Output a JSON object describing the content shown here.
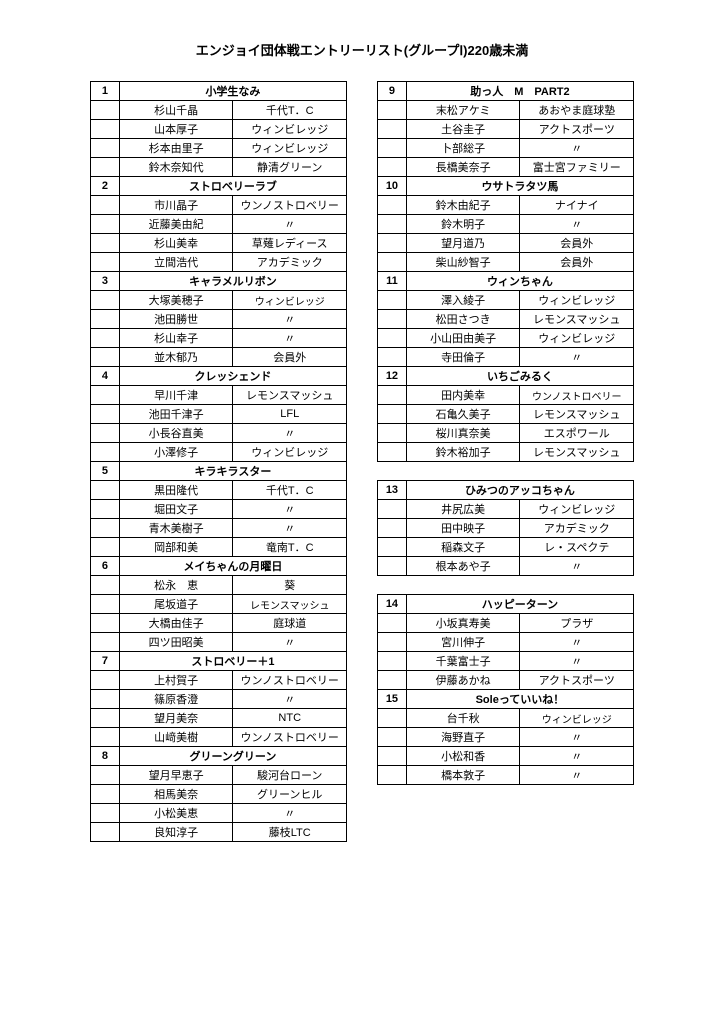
{
  "title": "エンジョイ団体戦エントリーリスト(グループⅠ)220歳未満",
  "left": [
    {
      "num": "1",
      "name": "小学生なみ",
      "members": [
        [
          "杉山千晶",
          "千代T．C"
        ],
        [
          "山本厚子",
          "ウィンビレッジ"
        ],
        [
          "杉本由里子",
          "ウィンビレッジ"
        ],
        [
          "鈴木奈知代",
          "静清グリーン"
        ]
      ]
    },
    {
      "num": "2",
      "name": "ストロベリーラブ",
      "members": [
        [
          "市川晶子",
          "ウンノストロベリー"
        ],
        [
          "近藤美由紀",
          "〃"
        ],
        [
          "杉山美幸",
          "草薙レディース"
        ],
        [
          "立間浩代",
          "アカデミック"
        ]
      ]
    },
    {
      "num": "3",
      "name": "キャラメルリボン",
      "members": [
        [
          "大塚美穂子",
          "ウィンビレッジ",
          true
        ],
        [
          "池田勝世",
          "〃"
        ],
        [
          "杉山幸子",
          "〃"
        ],
        [
          "並木郁乃",
          "会員外"
        ]
      ]
    },
    {
      "num": "4",
      "name": "クレッシェンド",
      "members": [
        [
          "早川千津",
          "レモンスマッシュ"
        ],
        [
          "池田千津子",
          "LFL"
        ],
        [
          "小長谷直美",
          "〃"
        ],
        [
          "小澤修子",
          "ウィンビレッジ"
        ]
      ]
    },
    {
      "num": "5",
      "name": "キラキラスター",
      "members": [
        [
          "黒田隆代",
          "千代T．C"
        ],
        [
          "堀田文子",
          "〃"
        ],
        [
          "青木美樹子",
          "〃"
        ],
        [
          "岡部和美",
          "竜南T．C"
        ]
      ]
    },
    {
      "num": "6",
      "name": "メイちゃんの月曜日",
      "members": [
        [
          "松永　恵",
          "葵"
        ],
        [
          "尾坂道子",
          "レモンスマッシュ",
          true
        ],
        [
          "大橋由佳子",
          "庭球道"
        ],
        [
          "四ツ田昭美",
          "〃"
        ]
      ]
    },
    {
      "num": "7",
      "name": "ストロベリー＋1",
      "members": [
        [
          "上村賀子",
          "ウンノストロベリー"
        ],
        [
          "篠原香澄",
          "〃"
        ],
        [
          "望月美奈",
          "NTC"
        ],
        [
          "山﨑美樹",
          "ウンノストロベリー"
        ]
      ]
    },
    {
      "num": "8",
      "name": "グリーングリーン",
      "members": [
        [
          "望月早恵子",
          "駿河台ローン"
        ],
        [
          "相馬美奈",
          "グリーンヒル"
        ],
        [
          "小松美恵",
          "〃"
        ],
        [
          "良知淳子",
          "藤枝LTC"
        ]
      ]
    }
  ],
  "right": [
    {
      "num": "9",
      "name": "助っ人　M　PART2",
      "members": [
        [
          "末松アケミ",
          "あおやま庭球塾"
        ],
        [
          "土谷圭子",
          "アクトスポーツ"
        ],
        [
          "卜部総子",
          "〃"
        ],
        [
          "長橋美奈子",
          "富士宮ファミリー"
        ]
      ]
    },
    {
      "num": "10",
      "name": "ウサトラタツ馬",
      "members": [
        [
          "鈴木由紀子",
          "ナイナイ"
        ],
        [
          "鈴木明子",
          "〃"
        ],
        [
          "望月道乃",
          "会員外"
        ],
        [
          "柴山紗智子",
          "会員外"
        ]
      ]
    },
    {
      "num": "11",
      "name": "ウィンちゃん",
      "members": [
        [
          "澤入綾子",
          "ウィンビレッジ"
        ],
        [
          "松田さつき",
          "レモンスマッシュ"
        ],
        [
          "小山田由美子",
          "ウィンビレッジ"
        ],
        [
          "寺田倫子",
          "〃"
        ]
      ]
    },
    {
      "num": "12",
      "name": "いちごみるく",
      "members": [
        [
          "田内美幸",
          "ウンノストロベリー",
          true
        ],
        [
          "石亀久美子",
          "レモンスマッシュ"
        ],
        [
          "桜川真奈美",
          "エスポワール"
        ],
        [
          "鈴木裕加子",
          "レモンスマッシュ"
        ]
      ]
    },
    {
      "num": "13",
      "name": "ひみつのアッコちゃん",
      "members": [
        [
          "井尻広美",
          "ウィンビレッジ"
        ],
        [
          "田中映子",
          "アカデミック"
        ],
        [
          "稲森文子",
          "レ・スペクテ"
        ],
        [
          "根本あや子",
          "〃"
        ]
      ],
      "gap_before": true
    },
    {
      "num": "14",
      "name": "ハッピーターン",
      "members": [
        [
          "小坂真寿美",
          "プラザ"
        ],
        [
          "宮川伸子",
          "〃"
        ],
        [
          "千葉富士子",
          "〃"
        ],
        [
          "伊藤あかね",
          "アクトスポーツ"
        ]
      ],
      "gap_before": true
    },
    {
      "num": "15",
      "name": "Soleっていいね！",
      "members": [
        [
          "台千秋",
          "ウィンビレッジ",
          true
        ],
        [
          "海野直子",
          "〃"
        ],
        [
          "小松和香",
          "〃"
        ],
        [
          "橋本敦子",
          "〃"
        ]
      ]
    }
  ]
}
